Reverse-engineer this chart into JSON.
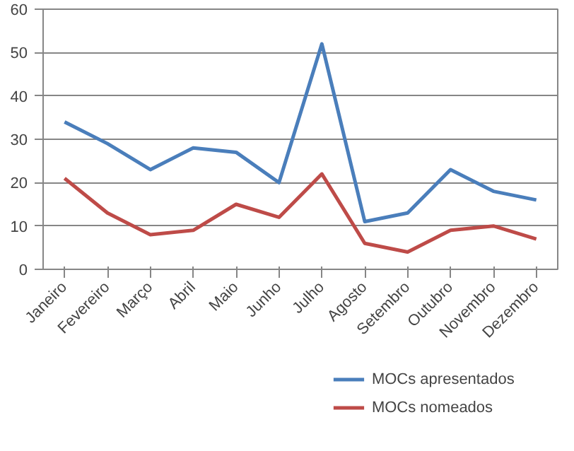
{
  "chart_data": {
    "type": "line",
    "categories": [
      "Janeiro",
      "Fevereiro",
      "Março",
      "Abril",
      "Maio",
      "Junho",
      "Julho",
      "Agosto",
      "Setembro",
      "Outubro",
      "Novembro",
      "Dezembro"
    ],
    "series": [
      {
        "name": "MOCs apresentados",
        "color": "#4a7ebb",
        "values": [
          34,
          29,
          23,
          28,
          27,
          20,
          52,
          11,
          13,
          23,
          18,
          16
        ]
      },
      {
        "name": "MOCs nomeados",
        "color": "#be4b48",
        "values": [
          21,
          13,
          8,
          9,
          15,
          12,
          22,
          6,
          4,
          9,
          10,
          7
        ]
      }
    ],
    "ylim": [
      0,
      60
    ],
    "yticks": [
      0,
      10,
      20,
      30,
      40,
      50,
      60
    ],
    "grid": "y",
    "legend": "bottom right",
    "marker": "none",
    "line_style": "solid"
  }
}
